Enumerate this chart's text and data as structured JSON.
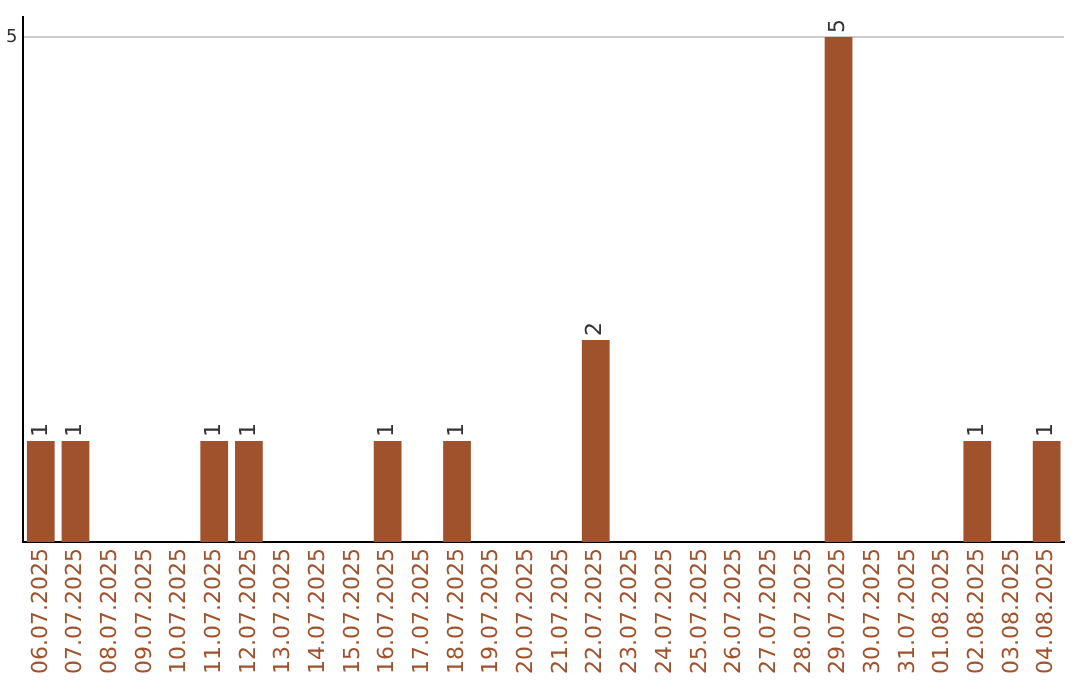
{
  "chart_data": {
    "type": "bar",
    "categories": [
      "06.07.2025",
      "07.07.2025",
      "08.07.2025",
      "09.07.2025",
      "10.07.2025",
      "11.07.2025",
      "12.07.2025",
      "13.07.2025",
      "14.07.2025",
      "15.07.2025",
      "16.07.2025",
      "17.07.2025",
      "18.07.2025",
      "19.07.2025",
      "20.07.2025",
      "21.07.2025",
      "22.07.2025",
      "23.07.2025",
      "24.07.2025",
      "25.07.2025",
      "26.07.2025",
      "27.07.2025",
      "28.07.2025",
      "29.07.2025",
      "30.07.2025",
      "31.07.2025",
      "01.08.2025",
      "02.08.2025",
      "03.08.2025",
      "04.08.2025"
    ],
    "values": [
      1,
      1,
      0,
      0,
      0,
      1,
      1,
      0,
      0,
      0,
      1,
      0,
      1,
      0,
      0,
      0,
      2,
      0,
      0,
      0,
      0,
      0,
      0,
      5,
      0,
      0,
      0,
      1,
      0,
      1
    ],
    "value_labels": [
      "1",
      "1",
      null,
      null,
      null,
      "1",
      "1",
      null,
      null,
      null,
      "1",
      null,
      "1",
      null,
      null,
      null,
      "2",
      null,
      null,
      null,
      null,
      null,
      null,
      "5",
      null,
      null,
      null,
      "1",
      null,
      "1"
    ],
    "color": "#a0522d",
    "ylim": [
      0,
      5.2
    ],
    "yticks": [
      5
    ],
    "grid": "y",
    "legend": false
  }
}
